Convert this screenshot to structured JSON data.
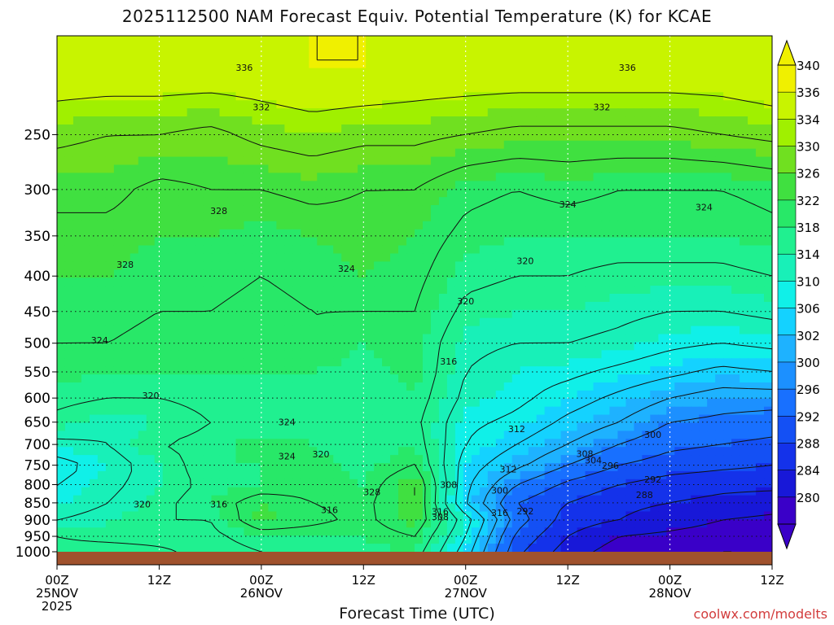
{
  "chart_data": {
    "type": "heatmap",
    "title": "2025112500 NAM Forecast Equiv. Potential Temperature (K) for KCAE",
    "xlabel": "Forecast Time (UTC)",
    "credit": "coolwx.com/modelts",
    "y_axis": {
      "reversed": true,
      "range": [
        1000,
        180
      ],
      "ticks": [
        250,
        300,
        350,
        400,
        450,
        500,
        550,
        600,
        650,
        700,
        750,
        800,
        850,
        900,
        950,
        1000
      ],
      "grid": true
    },
    "x_axis": {
      "range_hours": [
        0,
        84
      ],
      "ticks": [
        {
          "hour": 0,
          "line1": "00Z",
          "line2": "25NOV",
          "line3": "2025"
        },
        {
          "hour": 12,
          "line1": "12Z",
          "line2": "",
          "line3": ""
        },
        {
          "hour": 24,
          "line1": "00Z",
          "line2": "26NOV",
          "line3": ""
        },
        {
          "hour": 36,
          "line1": "12Z",
          "line2": "",
          "line3": ""
        },
        {
          "hour": 48,
          "line1": "00Z",
          "line2": "27NOV",
          "line3": ""
        },
        {
          "hour": 60,
          "line1": "12Z",
          "line2": "",
          "line3": ""
        },
        {
          "hour": 72,
          "line1": "00Z",
          "line2": "28NOV",
          "line3": ""
        },
        {
          "hour": 84,
          "line1": "12Z",
          "line2": "",
          "line3": ""
        }
      ]
    },
    "colorbar": {
      "levels": [
        280,
        284,
        288,
        292,
        296,
        300,
        302,
        306,
        310,
        314,
        318,
        322,
        326,
        330,
        334,
        336,
        340
      ],
      "labels": [
        "340",
        "336",
        "334",
        "330",
        "326",
        "322",
        "318",
        "314",
        "310",
        "306",
        "302",
        "300",
        "296",
        "292",
        "288",
        "284",
        "280"
      ],
      "colors": [
        "#3a00c8",
        "#1818d8",
        "#1432ea",
        "#1450f4",
        "#1870ff",
        "#1c90ff",
        "#1eb2ff",
        "#14d2ff",
        "#10f0e8",
        "#18f0b8",
        "#20f090",
        "#28e868",
        "#40e040",
        "#70e020",
        "#a0f000",
        "#c8f400",
        "#f0f000"
      ]
    },
    "pressure_levels": [
      200,
      250,
      300,
      350,
      400,
      450,
      500,
      550,
      600,
      650,
      700,
      750,
      800,
      850,
      900,
      950,
      1000
    ],
    "times_hours": [
      0,
      6,
      12,
      18,
      24,
      30,
      36,
      42,
      48,
      54,
      60,
      66,
      72,
      78,
      84
    ],
    "theta_e_grid_K": [
      [
        339,
        339,
        339,
        339,
        339,
        340,
        340,
        339,
        339,
        339,
        339,
        339,
        339,
        339,
        340
      ],
      [
        333,
        332,
        332,
        331,
        333,
        334,
        333,
        333,
        332,
        331,
        331,
        331,
        331,
        332,
        333
      ],
      [
        329,
        329,
        327,
        328,
        328,
        329,
        328,
        328,
        325,
        324,
        325,
        324,
        324,
        324,
        325
      ],
      [
        327,
        327,
        326,
        326,
        325,
        326,
        327,
        326,
        323,
        322,
        322,
        322,
        322,
        322,
        323
      ],
      [
        326,
        326,
        325,
        325,
        324,
        325,
        326,
        325,
        321,
        320,
        320,
        319,
        319,
        319,
        320
      ],
      [
        325,
        325,
        324,
        324,
        323,
        324,
        324,
        324,
        319,
        318,
        318,
        317,
        316,
        316,
        317
      ],
      [
        324,
        324,
        323,
        323,
        323,
        324,
        322,
        323,
        317,
        316,
        316,
        315,
        313,
        312,
        313
      ],
      [
        323,
        322,
        322,
        322,
        322,
        322,
        321,
        323,
        316,
        314,
        313,
        311,
        309,
        307,
        308
      ],
      [
        321,
        320,
        320,
        321,
        321,
        321,
        320,
        322,
        315,
        313,
        310,
        307,
        304,
        302,
        302
      ],
      [
        319,
        317,
        318,
        320,
        320,
        320,
        320,
        321,
        313,
        311,
        307,
        304,
        300,
        299,
        298
      ],
      [
        315,
        316,
        320,
        321,
        323,
        322,
        320,
        322,
        312,
        308,
        304,
        300,
        297,
        296,
        295
      ],
      [
        310,
        314,
        318,
        322,
        322,
        323,
        321,
        324,
        310,
        305,
        300,
        296,
        294,
        293,
        292
      ],
      [
        312,
        315,
        318,
        321,
        322,
        323,
        322,
        328,
        309,
        300,
        295,
        292,
        290,
        289,
        289
      ],
      [
        313,
        316,
        319,
        322,
        326,
        324,
        323,
        328,
        308,
        296,
        292,
        289,
        288,
        287,
        286
      ],
      [
        316,
        318,
        320,
        320,
        327,
        325,
        323,
        327,
        314,
        298,
        290,
        288,
        286,
        284,
        283
      ],
      [
        320,
        318,
        318,
        319,
        322,
        322,
        322,
        324,
        312,
        295,
        288,
        284,
        283,
        282,
        281
      ],
      [
        322,
        323,
        321,
        318,
        320,
        321,
        321,
        322,
        310,
        293,
        286,
        282,
        281,
        280,
        280
      ]
    ],
    "contour_labels": [
      "336",
      "336",
      "332",
      "332",
      "328",
      "328",
      "324",
      "324",
      "324",
      "324",
      "324",
      "324",
      "320",
      "320",
      "320",
      "320",
      "320",
      "316",
      "316",
      "316",
      "316",
      "316",
      "312",
      "312",
      "308",
      "308",
      "308",
      "304",
      "300",
      "300",
      "296",
      "292",
      "292",
      "288",
      "328"
    ]
  }
}
